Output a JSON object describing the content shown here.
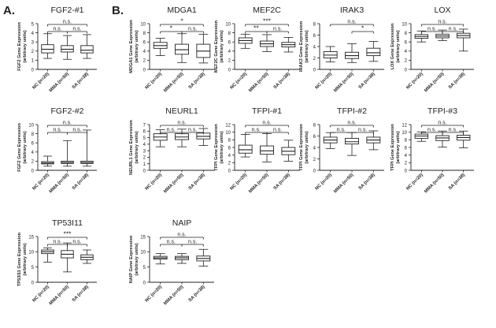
{
  "figure": {
    "panel_a": "A.",
    "panel_b": "B."
  },
  "groups": [
    "NC (n=20)",
    "MMA (n=50)",
    "SA (n=38)"
  ],
  "chart_data": [
    {
      "type": "boxplot",
      "title": "FGF2-#1",
      "ylabel": [
        "FGF2 Gene Expression",
        "(arbitrary units)"
      ],
      "ylim": [
        0,
        5
      ],
      "yticks": [
        0,
        1,
        2,
        3,
        4,
        5
      ],
      "boxes": [
        {
          "min": 1.2,
          "q1": 1.8,
          "median": 2.2,
          "q3": 2.7,
          "max": 3.9
        },
        {
          "min": 1.1,
          "q1": 1.9,
          "median": 2.2,
          "q3": 2.6,
          "max": 3.7
        },
        {
          "min": 1.2,
          "q1": 1.8,
          "median": 2.1,
          "q3": 2.6,
          "max": 3.8
        }
      ],
      "annotations": [
        {
          "from": 0,
          "to": 2,
          "text": "n.s."
        },
        {
          "from": 0,
          "to": 1,
          "text": "n.s."
        },
        {
          "from": 1,
          "to": 2,
          "text": "n.s."
        }
      ]
    },
    {
      "type": "boxplot",
      "title": "MDGA1",
      "ylabel": [
        "MDGA1 Gene Expression",
        "(arbitrary units)"
      ],
      "ylim": [
        0,
        10
      ],
      "yticks": [
        0,
        2,
        4,
        6,
        8,
        10
      ],
      "boxes": [
        {
          "min": 3.0,
          "q1": 4.6,
          "median": 5.2,
          "q3": 5.9,
          "max": 6.8
        },
        {
          "min": 1.5,
          "q1": 3.3,
          "median": 4.3,
          "q3": 5.5,
          "max": 7.8
        },
        {
          "min": 1.4,
          "q1": 2.6,
          "median": 4.0,
          "q3": 5.5,
          "max": 7.7
        }
      ],
      "annotations": [
        {
          "from": 0,
          "to": 2,
          "text": "*"
        },
        {
          "from": 0,
          "to": 1,
          "text": "*"
        },
        {
          "from": 1,
          "to": 2,
          "text": "n.s."
        }
      ]
    },
    {
      "type": "boxplot",
      "title": "MEF2C",
      "ylabel": [
        "MEF2C Gene Expression",
        "(arbitrary units)"
      ],
      "ylim": [
        0,
        10
      ],
      "yticks": [
        0,
        2,
        4,
        6,
        8,
        10
      ],
      "boxes": [
        {
          "min": 4.6,
          "q1": 5.7,
          "median": 6.3,
          "q3": 6.9,
          "max": 7.7
        },
        {
          "min": 3.9,
          "q1": 5.0,
          "median": 5.6,
          "q3": 6.2,
          "max": 7.6
        },
        {
          "min": 3.8,
          "q1": 4.9,
          "median": 5.4,
          "q3": 5.9,
          "max": 7.0
        }
      ],
      "annotations": [
        {
          "from": 0,
          "to": 2,
          "text": "***"
        },
        {
          "from": 0,
          "to": 1,
          "text": "**"
        },
        {
          "from": 1,
          "to": 2,
          "text": "n.s."
        }
      ]
    },
    {
      "type": "boxplot",
      "title": "IRAK3",
      "ylabel": [
        "IRAK3 Gene Expression",
        "(arbitrary units)"
      ],
      "ylim": [
        0,
        8
      ],
      "yticks": [
        0,
        2,
        4,
        6,
        8
      ],
      "boxes": [
        {
          "min": 1.3,
          "q1": 2.0,
          "median": 2.5,
          "q3": 3.1,
          "max": 4.0
        },
        {
          "min": 1.2,
          "q1": 1.9,
          "median": 2.4,
          "q3": 3.0,
          "max": 4.5
        },
        {
          "min": 1.4,
          "q1": 2.4,
          "median": 2.9,
          "q3": 3.7,
          "max": 4.9
        }
      ],
      "annotations": [
        {
          "from": 0,
          "to": 2,
          "text": "n.s."
        },
        {
          "from": 1,
          "to": 2,
          "text": "*"
        }
      ]
    },
    {
      "type": "boxplot",
      "title": "LOX",
      "ylabel": [
        "LOX Gene Expression",
        "(arbitrary units)"
      ],
      "ylim": [
        0,
        10
      ],
      "yticks": [
        0,
        2,
        4,
        6,
        8,
        10
      ],
      "boxes": [
        {
          "min": 6.0,
          "q1": 6.8,
          "median": 7.2,
          "q3": 7.6,
          "max": 8.4
        },
        {
          "min": 6.3,
          "q1": 6.9,
          "median": 7.3,
          "q3": 7.7,
          "max": 8.6
        },
        {
          "min": 4.0,
          "q1": 6.9,
          "median": 7.4,
          "q3": 7.9,
          "max": 8.8
        }
      ],
      "annotations": [
        {
          "from": 0,
          "to": 2,
          "text": "n.s."
        },
        {
          "from": 0,
          "to": 1,
          "text": "n.s."
        },
        {
          "from": 1,
          "to": 2,
          "text": "n.s."
        }
      ]
    },
    {
      "type": "boxplot",
      "title": "FGF2-#2",
      "ylabel": [
        "FGF2 Gene Expression",
        "(arbitrary units)"
      ],
      "ylim": [
        0,
        10
      ],
      "yticks": [
        0,
        2,
        4,
        6,
        8,
        10
      ],
      "boxes": [
        {
          "min": 0.9,
          "q1": 1.4,
          "median": 1.6,
          "q3": 1.9,
          "max": 3.1
        },
        {
          "min": 0.9,
          "q1": 1.5,
          "median": 1.7,
          "q3": 2.0,
          "max": 6.5
        },
        {
          "min": 0.9,
          "q1": 1.5,
          "median": 1.7,
          "q3": 2.0,
          "max": 8.8
        }
      ],
      "annotations": [
        {
          "from": 0,
          "to": 2,
          "text": "n.s."
        },
        {
          "from": 0,
          "to": 1,
          "text": "n.s."
        },
        {
          "from": 1,
          "to": 2,
          "text": "n.s."
        }
      ]
    },
    {
      "type": "boxplot",
      "title": "NEURL1",
      "ylabel": [
        "NEURL1 Gene Expression",
        "(arbitrary units)"
      ],
      "ylim": [
        0,
        7
      ],
      "yticks": [
        0,
        1,
        2,
        3,
        4,
        5,
        6,
        7
      ],
      "boxes": [
        {
          "min": 3.6,
          "q1": 4.6,
          "median": 5.1,
          "q3": 5.6,
          "max": 6.2
        },
        {
          "min": 3.6,
          "q1": 4.7,
          "median": 5.1,
          "q3": 5.6,
          "max": 6.3
        },
        {
          "min": 3.8,
          "q1": 4.8,
          "median": 5.2,
          "q3": 5.7,
          "max": 6.4
        }
      ],
      "annotations": [
        {
          "from": 0,
          "to": 2,
          "text": "n.s."
        },
        {
          "from": 0,
          "to": 1,
          "text": "n.s."
        },
        {
          "from": 1,
          "to": 2,
          "text": "n.s."
        }
      ]
    },
    {
      "type": "boxplot",
      "title": "TFPI-#1",
      "ylabel": [
        "TFPI Gene Expression",
        "(arbitrary units)"
      ],
      "ylim": [
        0,
        12
      ],
      "yticks": [
        0,
        2,
        4,
        6,
        8,
        10,
        12
      ],
      "boxes": [
        {
          "min": 3.5,
          "q1": 4.5,
          "median": 5.4,
          "q3": 6.6,
          "max": 9.4
        },
        {
          "min": 2.2,
          "q1": 4.2,
          "median": 5.1,
          "q3": 6.4,
          "max": 9.6
        },
        {
          "min": 2.4,
          "q1": 4.1,
          "median": 5.0,
          "q3": 6.0,
          "max": 7.9
        }
      ],
      "annotations": [
        {
          "from": 0,
          "to": 2,
          "text": "n.s."
        },
        {
          "from": 0,
          "to": 1,
          "text": "n.s."
        },
        {
          "from": 1,
          "to": 2,
          "text": "n.s."
        }
      ]
    },
    {
      "type": "boxplot",
      "title": "TFPI-#2",
      "ylabel": [
        "TFPI Gene Expression",
        "(arbitrary units)"
      ],
      "ylim": [
        0,
        8
      ],
      "yticks": [
        0,
        2,
        4,
        6,
        8
      ],
      "boxes": [
        {
          "min": 3.8,
          "q1": 4.8,
          "median": 5.3,
          "q3": 5.8,
          "max": 6.6
        },
        {
          "min": 2.6,
          "q1": 4.6,
          "median": 5.0,
          "q3": 5.6,
          "max": 6.6
        },
        {
          "min": 3.6,
          "q1": 4.8,
          "median": 5.3,
          "q3": 5.8,
          "max": 6.9
        }
      ],
      "annotations": [
        {
          "from": 0,
          "to": 2,
          "text": "n.s."
        },
        {
          "from": 0,
          "to": 1,
          "text": "n.s."
        },
        {
          "from": 1,
          "to": 2,
          "text": "n.s."
        }
      ]
    },
    {
      "type": "boxplot",
      "title": "TFPI-#3",
      "ylabel": [
        "TFPI Gene Expression",
        "(arbitrary units)"
      ],
      "ylim": [
        0,
        12
      ],
      "yticks": [
        0,
        2,
        4,
        6,
        8,
        10,
        12
      ],
      "boxes": [
        {
          "min": 7.6,
          "q1": 8.4,
          "median": 9.0,
          "q3": 9.5,
          "max": 10.1
        },
        {
          "min": 6.1,
          "q1": 7.8,
          "median": 8.5,
          "q3": 9.1,
          "max": 10.3
        },
        {
          "min": 5.9,
          "q1": 7.9,
          "median": 8.6,
          "q3": 9.2,
          "max": 10.3
        }
      ],
      "annotations": [
        {
          "from": 0,
          "to": 2,
          "text": "n.s."
        },
        {
          "from": 0,
          "to": 1,
          "text": "n.s."
        },
        {
          "from": 1,
          "to": 2,
          "text": "n.s."
        }
      ]
    },
    {
      "type": "boxplot",
      "title": "TP53I11",
      "ylabel": [
        "TP53I11 Gene Expression",
        "(arbitrary units)"
      ],
      "ylim": [
        0,
        15
      ],
      "yticks": [
        0,
        5,
        10,
        15
      ],
      "boxes": [
        {
          "min": 6.6,
          "q1": 9.4,
          "median": 10.0,
          "q3": 10.6,
          "max": 11.3
        },
        {
          "min": 3.4,
          "q1": 8.0,
          "median": 9.2,
          "q3": 10.4,
          "max": 12.9
        },
        {
          "min": 6.2,
          "q1": 7.4,
          "median": 8.2,
          "q3": 9.0,
          "max": 10.6
        }
      ],
      "annotations": [
        {
          "from": 0,
          "to": 2,
          "text": "***"
        },
        {
          "from": 0,
          "to": 1,
          "text": "n.s."
        },
        {
          "from": 1,
          "to": 2,
          "text": "n.s."
        }
      ]
    },
    {
      "type": "boxplot",
      "title": "NAIP",
      "ylabel": [
        "NAIP Gene Expression",
        "(arbitrary units)"
      ],
      "ylim": [
        0,
        15
      ],
      "yticks": [
        0,
        5,
        10,
        15
      ],
      "boxes": [
        {
          "min": 6.0,
          "q1": 7.6,
          "median": 8.0,
          "q3": 8.5,
          "max": 9.4
        },
        {
          "min": 6.2,
          "q1": 7.4,
          "median": 8.0,
          "q3": 8.5,
          "max": 9.4
        },
        {
          "min": 5.3,
          "q1": 7.0,
          "median": 7.8,
          "q3": 8.6,
          "max": 10.8
        }
      ],
      "annotations": [
        {
          "from": 0,
          "to": 2,
          "text": "n.s."
        },
        {
          "from": 0,
          "to": 1,
          "text": "n.s."
        },
        {
          "from": 1,
          "to": 2,
          "text": "n.s."
        }
      ]
    }
  ]
}
